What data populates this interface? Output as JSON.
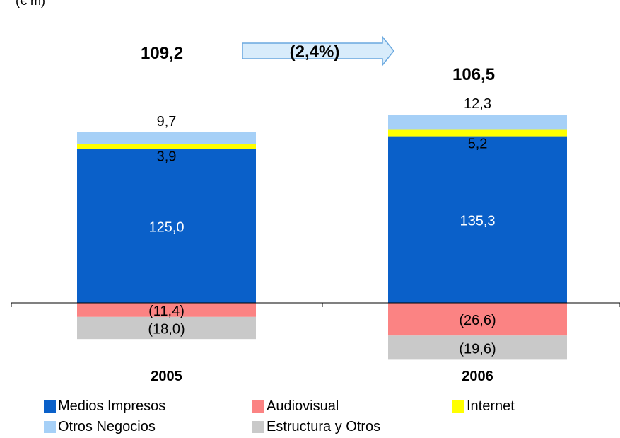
{
  "unit_label": "(€ m)",
  "totals": {
    "y2005": "109,2",
    "y2006": "106,5"
  },
  "change": "(2,4%)",
  "colors": {
    "Medios Impresos": "#0a60c9",
    "Audiovisual": "#fb8383",
    "Internet": "#ffff00",
    "Otros Negocios": "#a6d0f7",
    "Estructura y Otros": "#c9c9c9",
    "arrow_fill": "#d8ecfb",
    "arrow_stroke": "#6aa8df"
  },
  "chart_data": {
    "type": "bar",
    "stacked": true,
    "categories": [
      "2005",
      "2006"
    ],
    "series": [
      {
        "name": "Medios Impresos",
        "values": [
          125.0,
          135.3
        ],
        "labels": [
          "125,0",
          "135,3"
        ]
      },
      {
        "name": "Internet",
        "values": [
          3.9,
          5.2
        ],
        "labels": [
          "3,9",
          "5,2"
        ]
      },
      {
        "name": "Otros Negocios",
        "values": [
          9.7,
          12.3
        ],
        "labels": [
          "9,7",
          "12,3"
        ]
      },
      {
        "name": "Audiovisual",
        "values": [
          -11.4,
          -26.6
        ],
        "labels": [
          "(11,4)",
          "(26,6)"
        ]
      },
      {
        "name": "Estructura y Otros",
        "values": [
          -18.0,
          -19.6
        ],
        "labels": [
          "(18,0)",
          "(19,6)"
        ]
      }
    ],
    "legend": [
      "Medios Impresos",
      "Audiovisual",
      "Internet",
      "Otros Negocios",
      "Estructura y Otros"
    ],
    "legend_position": "bottom",
    "grid": false
  }
}
